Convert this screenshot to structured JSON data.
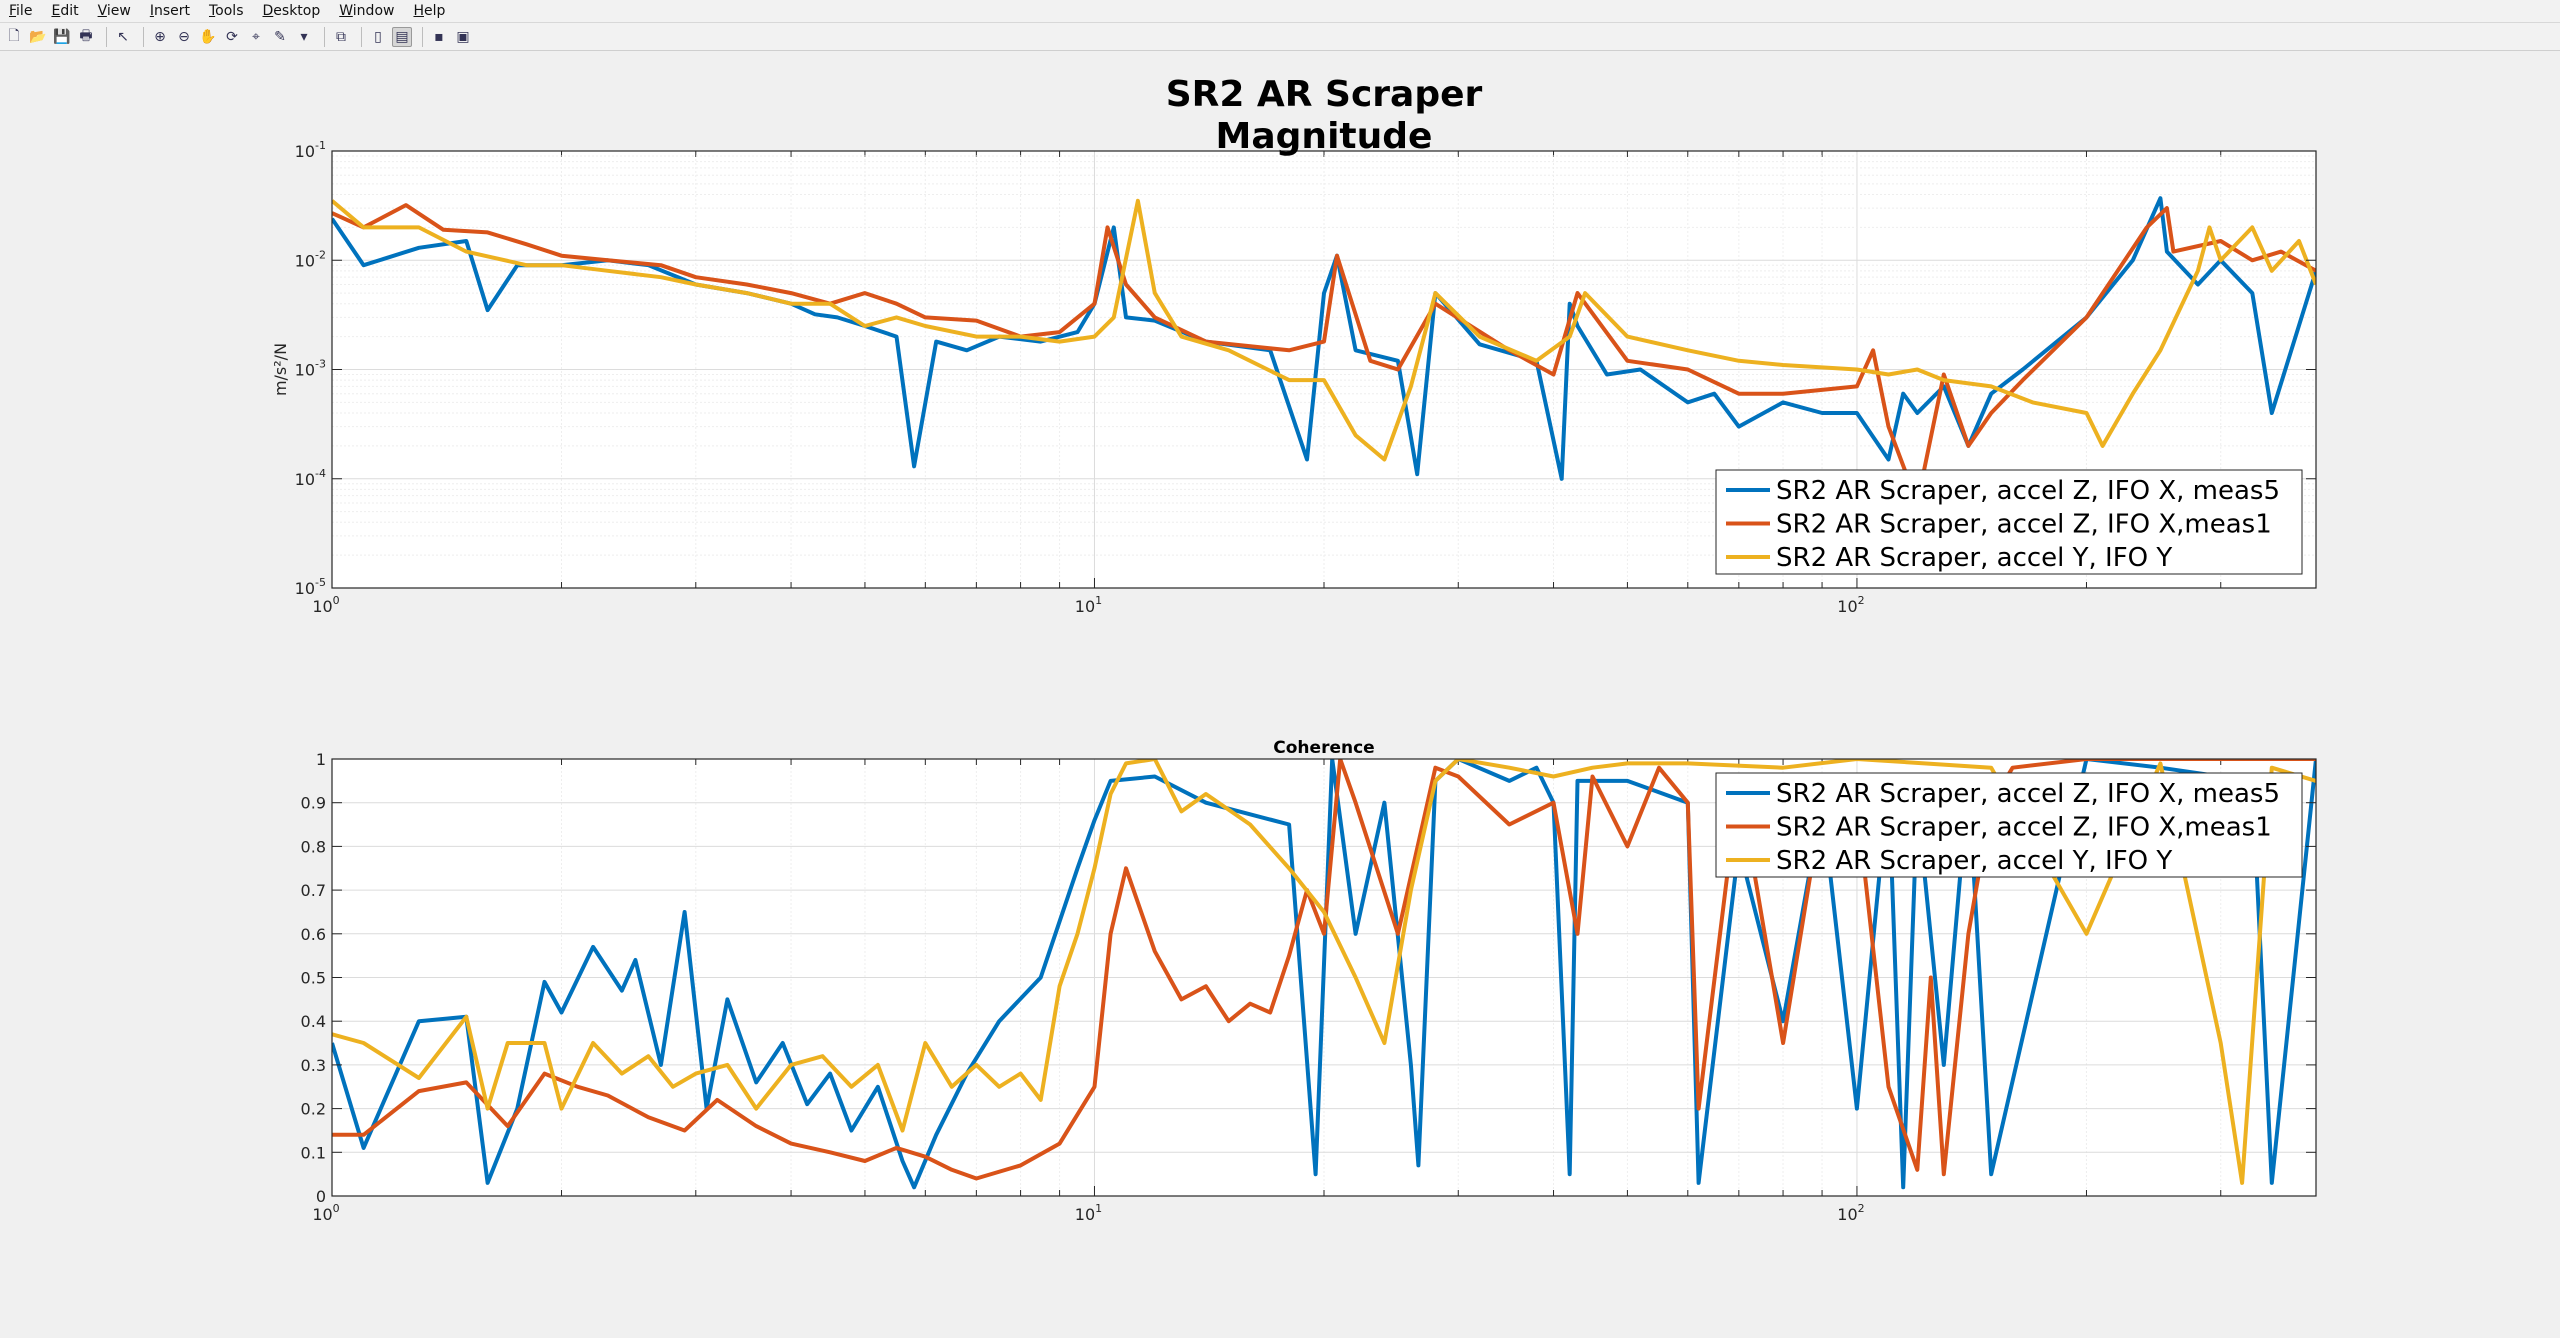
{
  "menu": [
    {
      "label": "File"
    },
    {
      "label": "Edit"
    },
    {
      "label": "View"
    },
    {
      "label": "Insert"
    },
    {
      "label": "Tools"
    },
    {
      "label": "Desktop"
    },
    {
      "label": "Window"
    },
    {
      "label": "Help"
    }
  ],
  "toolbar": [
    {
      "icon": "new-figure-icon",
      "glyph": "🗋"
    },
    {
      "icon": "open-file-icon",
      "glyph": "📂"
    },
    {
      "icon": "save-icon",
      "glyph": "💾"
    },
    {
      "icon": "print-icon",
      "glyph": "🖶"
    },
    {
      "sep": true
    },
    {
      "icon": "edit-plot-arrow-icon",
      "glyph": "↖"
    },
    {
      "sep": true
    },
    {
      "icon": "zoom-in-icon",
      "glyph": "⊕"
    },
    {
      "icon": "zoom-out-icon",
      "glyph": "⊖"
    },
    {
      "icon": "pan-hand-icon",
      "glyph": "✋"
    },
    {
      "icon": "rotate-3d-icon",
      "glyph": "⟳"
    },
    {
      "icon": "data-cursor-icon",
      "glyph": "⌖"
    },
    {
      "icon": "brush-icon",
      "glyph": "✎"
    },
    {
      "icon": "dropdown-arrow-icon",
      "glyph": "▾"
    },
    {
      "sep": true
    },
    {
      "icon": "link-plot-icon",
      "glyph": "⧉"
    },
    {
      "sep": true
    },
    {
      "icon": "colorbar-icon",
      "glyph": "▯"
    },
    {
      "icon": "legend-icon",
      "glyph": "▤",
      "active": true
    },
    {
      "sep": true
    },
    {
      "icon": "hide-plot-tools-icon",
      "glyph": "▪"
    },
    {
      "icon": "show-plot-tools-icon",
      "glyph": "▣"
    }
  ],
  "colors": {
    "series1": "#0072BD",
    "series2": "#D95319",
    "series3": "#EDB120"
  },
  "chart_data": [
    {
      "type": "line",
      "title": "SR2 AR Scraper",
      "subtitle": "Magnitude",
      "ylabel": "m/s²/N",
      "xscale": "log",
      "yscale": "log",
      "xlim": [
        1,
        400
      ],
      "ylim": [
        1e-05,
        0.1
      ],
      "xticks": [
        {
          "v": 1,
          "label": "10",
          "exp": "0"
        },
        {
          "v": 10,
          "label": "10",
          "exp": "1"
        },
        {
          "v": 100,
          "label": "10",
          "exp": "2"
        }
      ],
      "yticks": [
        {
          "v": 0.1,
          "label": "10",
          "exp": "-1"
        },
        {
          "v": 0.01,
          "label": "10",
          "exp": "-2"
        },
        {
          "v": 0.001,
          "label": "10",
          "exp": "-3"
        },
        {
          "v": 0.0001,
          "label": "10",
          "exp": "-4"
        },
        {
          "v": 1e-05,
          "label": "10",
          "exp": "-5"
        }
      ],
      "grid": true,
      "legend_position": "bottom-right",
      "series": [
        {
          "name": "SR2 AR Scraper, accel Z, IFO X, meas5",
          "color": "#0072BD",
          "x": [
            1,
            1.1,
            1.3,
            1.5,
            1.6,
            1.75,
            2,
            2.3,
            2.6,
            3,
            3.5,
            4,
            4.3,
            4.6,
            5,
            5.5,
            5.8,
            6.2,
            6.8,
            7.5,
            8.5,
            9.5,
            10,
            10.6,
            11,
            12,
            14,
            17,
            19,
            20,
            20.8,
            22,
            25,
            26.5,
            28,
            32,
            38,
            41,
            42,
            43,
            47,
            52,
            60,
            65,
            70,
            80,
            90,
            100,
            110,
            115,
            120,
            130,
            140,
            150,
            165,
            200,
            230,
            250,
            255,
            280,
            300,
            330,
            350,
            400
          ],
          "y": [
            0.024,
            0.009,
            0.013,
            0.015,
            0.0035,
            0.009,
            0.009,
            0.01,
            0.009,
            0.006,
            0.005,
            0.004,
            0.0032,
            0.003,
            0.0025,
            0.002,
            0.00013,
            0.0018,
            0.0015,
            0.002,
            0.0018,
            0.0022,
            0.004,
            0.02,
            0.003,
            0.0028,
            0.0018,
            0.0015,
            0.00015,
            0.005,
            0.011,
            0.0015,
            0.0012,
            0.00011,
            0.005,
            0.0017,
            0.0012,
            0.0001,
            0.004,
            0.0025,
            0.0009,
            0.001,
            0.0005,
            0.0006,
            0.0003,
            0.0005,
            0.0004,
            0.0004,
            0.00015,
            0.0006,
            0.0004,
            0.0007,
            0.0002,
            0.0006,
            0.001,
            0.003,
            0.01,
            0.037,
            0.012,
            0.006,
            0.01,
            0.005,
            0.0004,
            0.008
          ]
        },
        {
          "name": "SR2 AR Scraper, accel Z, IFO X,meas1",
          "color": "#D95319",
          "x": [
            1,
            1.1,
            1.25,
            1.4,
            1.6,
            1.8,
            2,
            2.3,
            2.7,
            3,
            3.5,
            4,
            4.5,
            5,
            5.5,
            6,
            7,
            8,
            9,
            10,
            10.4,
            11,
            12,
            14,
            18,
            20,
            20.8,
            23,
            25,
            28,
            35,
            40,
            43,
            50,
            60,
            70,
            80,
            100,
            105,
            110,
            120,
            130,
            140,
            150,
            165,
            200,
            240,
            255,
            260,
            300,
            330,
            360,
            400
          ],
          "y": [
            0.027,
            0.02,
            0.032,
            0.019,
            0.018,
            0.014,
            0.011,
            0.01,
            0.009,
            0.007,
            0.006,
            0.005,
            0.004,
            0.005,
            0.004,
            0.003,
            0.0028,
            0.002,
            0.0022,
            0.004,
            0.02,
            0.006,
            0.003,
            0.0018,
            0.0015,
            0.0018,
            0.011,
            0.0012,
            0.001,
            0.004,
            0.0015,
            0.0009,
            0.005,
            0.0012,
            0.001,
            0.0006,
            0.0006,
            0.0007,
            0.0015,
            0.0003,
            6e-05,
            0.0009,
            0.0002,
            0.0004,
            0.0008,
            0.003,
            0.02,
            0.03,
            0.012,
            0.015,
            0.01,
            0.012,
            0.008
          ]
        },
        {
          "name": "SR2 AR Scraper, accel Y, IFO Y",
          "color": "#EDB120",
          "x": [
            1,
            1.1,
            1.3,
            1.5,
            1.8,
            2,
            2.3,
            2.7,
            3,
            3.5,
            4,
            4.5,
            5,
            5.5,
            6,
            7,
            8,
            9,
            10,
            10.6,
            11.4,
            12,
            13,
            15,
            18,
            20,
            22,
            24,
            26,
            28,
            32,
            38,
            42,
            44,
            50,
            60,
            70,
            80,
            100,
            110,
            120,
            130,
            150,
            170,
            200,
            210,
            230,
            250,
            280,
            290,
            300,
            330,
            350,
            380,
            400
          ],
          "y": [
            0.035,
            0.02,
            0.02,
            0.012,
            0.009,
            0.009,
            0.008,
            0.007,
            0.006,
            0.005,
            0.004,
            0.004,
            0.0025,
            0.003,
            0.0025,
            0.002,
            0.002,
            0.0018,
            0.002,
            0.003,
            0.035,
            0.005,
            0.002,
            0.0015,
            0.0008,
            0.0008,
            0.00025,
            0.00015,
            0.0007,
            0.005,
            0.002,
            0.0012,
            0.002,
            0.005,
            0.002,
            0.0015,
            0.0012,
            0.0011,
            0.001,
            0.0009,
            0.001,
            0.0008,
            0.0007,
            0.0005,
            0.0004,
            0.0002,
            0.0006,
            0.0015,
            0.008,
            0.02,
            0.01,
            0.02,
            0.008,
            0.015,
            0.006
          ]
        }
      ]
    },
    {
      "type": "line",
      "title": "Coherence",
      "xscale": "log",
      "yscale": "linear",
      "xlim": [
        1,
        400
      ],
      "ylim": [
        0,
        1
      ],
      "xticks": [
        {
          "v": 1,
          "label": "10",
          "exp": "0"
        },
        {
          "v": 10,
          "label": "10",
          "exp": "1"
        },
        {
          "v": 100,
          "label": "10",
          "exp": "2"
        }
      ],
      "yticks": [
        {
          "v": 0,
          "label": "0"
        },
        {
          "v": 0.1,
          "label": "0.1"
        },
        {
          "v": 0.2,
          "label": "0.2"
        },
        {
          "v": 0.3,
          "label": "0.3"
        },
        {
          "v": 0.4,
          "label": "0.4"
        },
        {
          "v": 0.5,
          "label": "0.5"
        },
        {
          "v": 0.6,
          "label": "0.6"
        },
        {
          "v": 0.7,
          "label": "0.7"
        },
        {
          "v": 0.8,
          "label": "0.8"
        },
        {
          "v": 0.9,
          "label": "0.9"
        },
        {
          "v": 1,
          "label": "1"
        }
      ],
      "grid": true,
      "legend_position": "top-right",
      "series": [
        {
          "name": "SR2 AR Scraper, accel Z, IFO X, meas5",
          "color": "#0072BD",
          "x": [
            1,
            1.1,
            1.3,
            1.5,
            1.6,
            1.75,
            1.9,
            2,
            2.2,
            2.4,
            2.5,
            2.7,
            2.9,
            3.1,
            3.3,
            3.6,
            3.9,
            4.2,
            4.5,
            4.8,
            5.2,
            5.6,
            5.8,
            6.2,
            6.8,
            7.5,
            8.5,
            9.5,
            10,
            10.5,
            12,
            14,
            18,
            19.5,
            20.5,
            22,
            24,
            26,
            26.6,
            28,
            30,
            35,
            38,
            40,
            42,
            43,
            50,
            60,
            62,
            70,
            80,
            90,
            100,
            110,
            115,
            120,
            130,
            140,
            150,
            200,
            250,
            300,
            330,
            350,
            400
          ],
          "y": [
            0.35,
            0.11,
            0.4,
            0.41,
            0.03,
            0.2,
            0.49,
            0.42,
            0.57,
            0.47,
            0.54,
            0.3,
            0.65,
            0.2,
            0.45,
            0.26,
            0.35,
            0.21,
            0.28,
            0.15,
            0.25,
            0.08,
            0.02,
            0.14,
            0.28,
            0.4,
            0.5,
            0.75,
            0.86,
            0.95,
            0.96,
            0.9,
            0.85,
            0.05,
            1,
            0.6,
            0.9,
            0.3,
            0.07,
            0.95,
            1,
            0.95,
            0.98,
            0.9,
            0.05,
            0.95,
            0.95,
            0.9,
            0.03,
            0.8,
            0.4,
            0.9,
            0.2,
            0.95,
            0.02,
            0.9,
            0.3,
            0.95,
            0.05,
            1,
            0.98,
            0.96,
            0.95,
            0.03,
            1
          ]
        },
        {
          "name": "SR2 AR Scraper, accel Z, IFO X,meas1",
          "color": "#D95319",
          "x": [
            1,
            1.1,
            1.3,
            1.5,
            1.7,
            1.9,
            2.1,
            2.3,
            2.6,
            2.9,
            3.2,
            3.6,
            4,
            4.5,
            5,
            5.5,
            6,
            6.5,
            7,
            8,
            9,
            10,
            10.5,
            11,
            12,
            13,
            14,
            15,
            16,
            17,
            18,
            19,
            20,
            21,
            22,
            25,
            28,
            30,
            35,
            40,
            43,
            45,
            50,
            55,
            60,
            62,
            70,
            80,
            90,
            100,
            110,
            120,
            125,
            130,
            140,
            150,
            160,
            200,
            250,
            300,
            400
          ],
          "y": [
            0.14,
            0.14,
            0.24,
            0.26,
            0.16,
            0.28,
            0.25,
            0.23,
            0.18,
            0.15,
            0.22,
            0.16,
            0.12,
            0.1,
            0.08,
            0.11,
            0.09,
            0.06,
            0.04,
            0.07,
            0.12,
            0.25,
            0.6,
            0.75,
            0.56,
            0.45,
            0.48,
            0.4,
            0.44,
            0.42,
            0.55,
            0.7,
            0.6,
            1,
            0.9,
            0.6,
            0.98,
            0.96,
            0.85,
            0.9,
            0.6,
            0.96,
            0.8,
            0.98,
            0.9,
            0.2,
            0.95,
            0.35,
            0.9,
            0.9,
            0.25,
            0.06,
            0.5,
            0.05,
            0.6,
            0.9,
            0.98,
            1,
            1,
            1,
            1
          ]
        },
        {
          "name": "SR2 AR Scraper, accel Y, IFO Y",
          "color": "#EDB120",
          "x": [
            1,
            1.1,
            1.3,
            1.5,
            1.6,
            1.7,
            1.9,
            2,
            2.2,
            2.4,
            2.6,
            2.8,
            3,
            3.3,
            3.6,
            4,
            4.4,
            4.8,
            5.2,
            5.6,
            6,
            6.5,
            7,
            7.5,
            8,
            8.5,
            9,
            9.5,
            10,
            10.5,
            11,
            12,
            13,
            14,
            16,
            18,
            20,
            22,
            24,
            26,
            28,
            30,
            35,
            40,
            45,
            50,
            60,
            80,
            100,
            150,
            200,
            250,
            300,
            320,
            350,
            400
          ],
          "y": [
            0.37,
            0.35,
            0.27,
            0.41,
            0.2,
            0.35,
            0.35,
            0.2,
            0.35,
            0.28,
            0.32,
            0.25,
            0.28,
            0.3,
            0.2,
            0.3,
            0.32,
            0.25,
            0.3,
            0.15,
            0.35,
            0.25,
            0.3,
            0.25,
            0.28,
            0.22,
            0.48,
            0.6,
            0.75,
            0.92,
            0.99,
            1,
            0.88,
            0.92,
            0.85,
            0.75,
            0.65,
            0.5,
            0.35,
            0.7,
            0.95,
            1,
            0.98,
            0.96,
            0.98,
            0.99,
            0.99,
            0.98,
            1,
            0.98,
            0.6,
            0.99,
            0.35,
            0.03,
            0.98,
            0.95
          ]
        }
      ]
    }
  ]
}
